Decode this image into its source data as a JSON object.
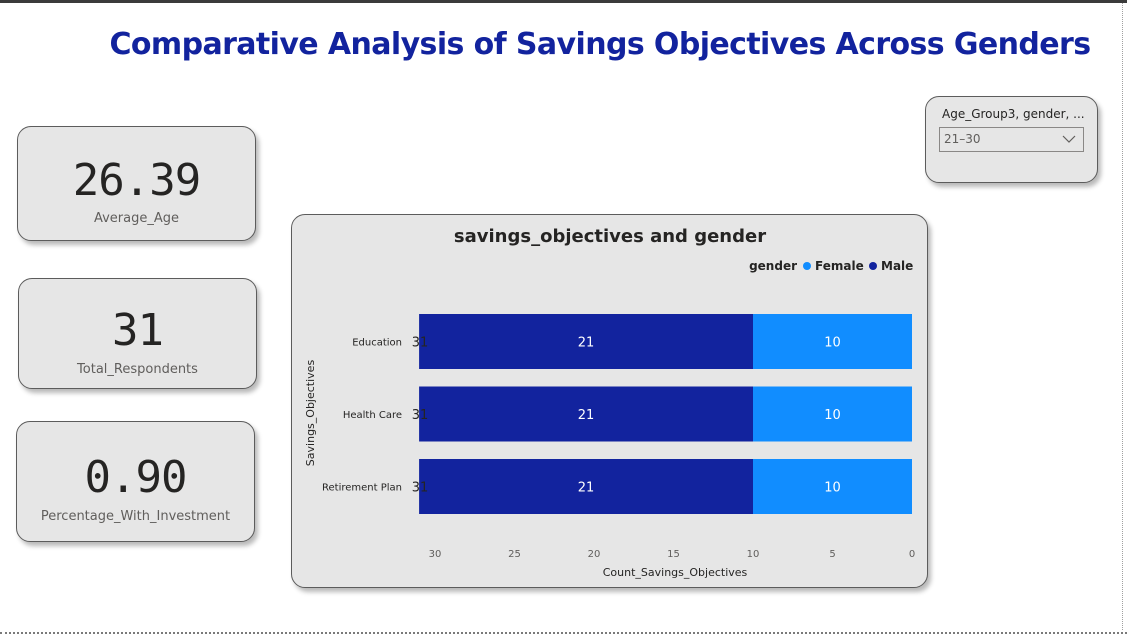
{
  "page": {
    "title": "Comparative Analysis of Savings Objectives Across Genders"
  },
  "kpis": [
    {
      "value": "26.39",
      "label": "Average_Age"
    },
    {
      "value": "31",
      "label": "Total_Respondents"
    },
    {
      "value": "0.90",
      "label": "Percentage_With_Investment"
    }
  ],
  "slicer": {
    "title": "Age_Group3, gender, ...",
    "selected": "21–30",
    "icon": "chevron-down-icon"
  },
  "colors": {
    "male": "#12239e",
    "female": "#118dff",
    "title": "#12239e",
    "card_bg": "#e6e6e6"
  },
  "chart_data": {
    "type": "bar",
    "orientation": "horizontal-stacked",
    "title": "savings_objectives and gender",
    "xlabel": "Count_Savings_Objectives",
    "ylabel": "Savings_Objectives",
    "legend_title": "gender",
    "legend_position": "top-right",
    "x_axis_reversed": true,
    "xlim": [
      0,
      30
    ],
    "x_ticks": [
      "30",
      "25",
      "20",
      "15",
      "10",
      "5",
      "0"
    ],
    "categories": [
      "Education",
      "Health Care",
      "Retirement Plan"
    ],
    "totals": [
      "31",
      "31",
      "31"
    ],
    "series": [
      {
        "name": "Female",
        "values": [
          10,
          10,
          10
        ],
        "color": "#118dff"
      },
      {
        "name": "Male",
        "values": [
          21,
          21,
          21
        ],
        "color": "#12239e"
      }
    ]
  }
}
